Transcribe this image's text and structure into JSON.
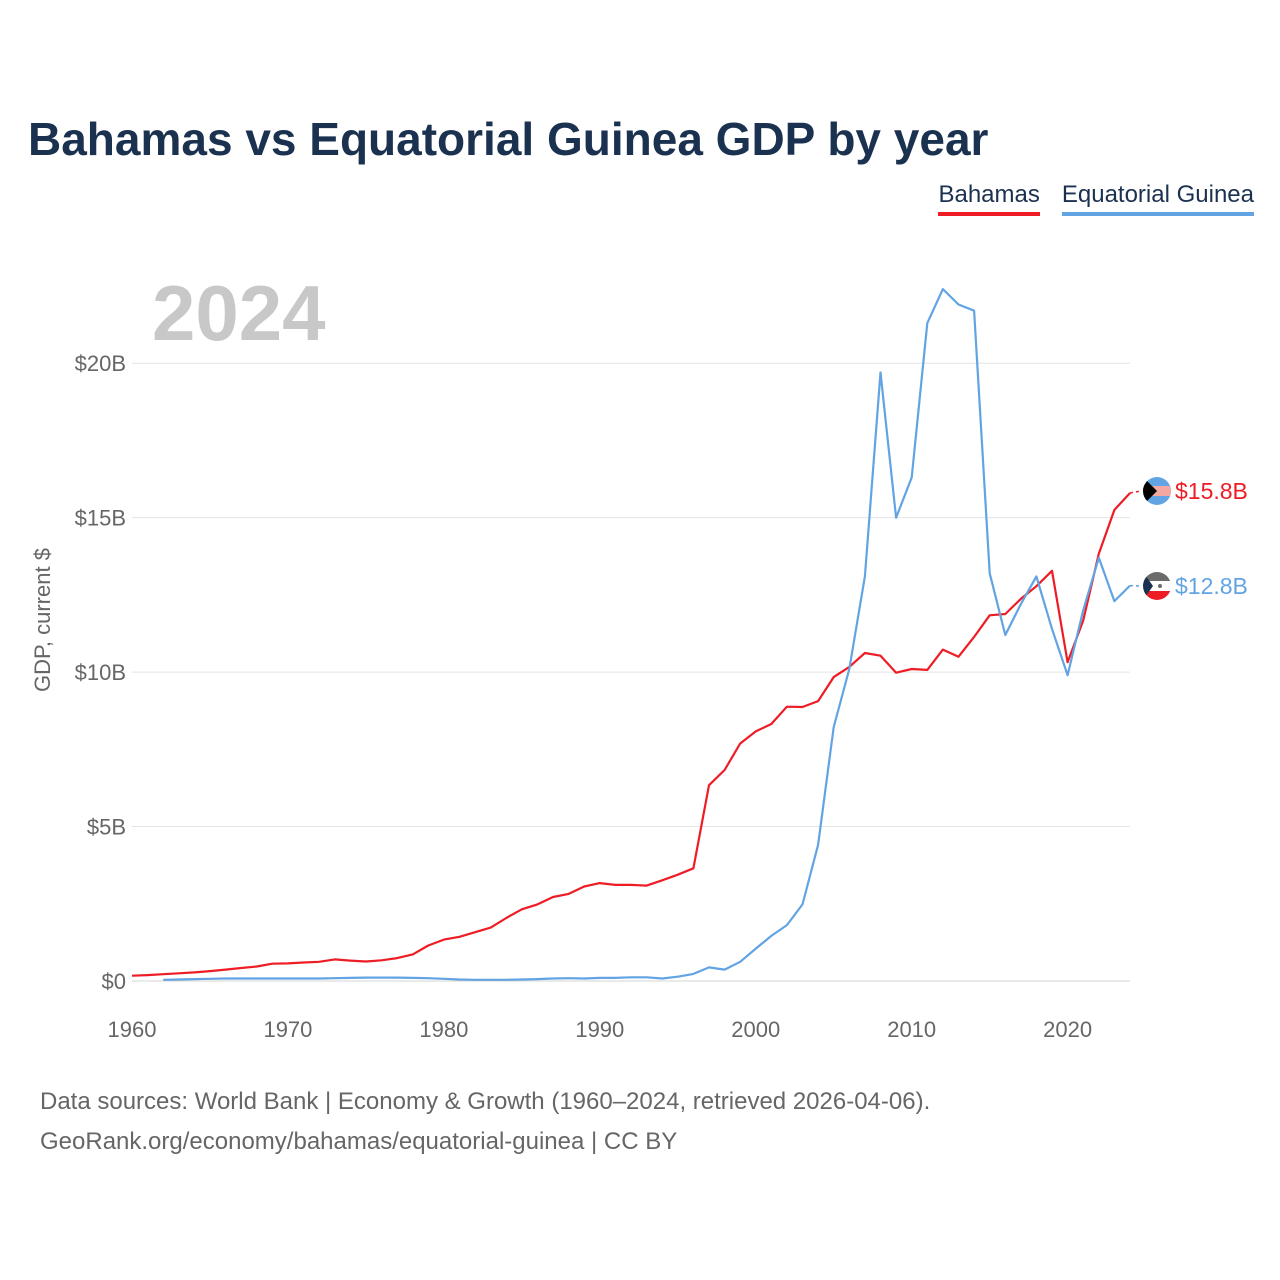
{
  "title": "Bahamas vs Equatorial Guinea GDP by year",
  "legend": [
    {
      "name": "Bahamas",
      "color": "#ee1c25"
    },
    {
      "name": "Equatorial Guinea",
      "color": "#62a4e3"
    }
  ],
  "year_label": "2024",
  "footer": {
    "line1": "Data sources: World Bank | Economy & Growth (1960–2024, retrieved 2026-04-06).",
    "line2": "GeoRank.org/economy/bahamas/equatorial-guinea | CC BY"
  },
  "chart_data": {
    "type": "line",
    "title": "Bahamas vs Equatorial Guinea GDP by year",
    "xlabel": "",
    "ylabel": "GDP, current $",
    "xlim": [
      1960,
      2024
    ],
    "ylim": [
      0,
      22.5
    ],
    "x_ticks": [
      1960,
      1970,
      1980,
      1990,
      2000,
      2010,
      2020
    ],
    "y_ticks": [
      {
        "value": 0,
        "label": "$0"
      },
      {
        "value": 5,
        "label": "$5B"
      },
      {
        "value": 10,
        "label": "$10B"
      },
      {
        "value": 15,
        "label": "$15B"
      },
      {
        "value": 20,
        "label": "$20B"
      }
    ],
    "grid": true,
    "series": [
      {
        "name": "Bahamas",
        "color": "#ee1c25",
        "end_label": "$15.8B",
        "x": [
          1960,
          1961,
          1962,
          1963,
          1964,
          1965,
          1966,
          1967,
          1968,
          1969,
          1970,
          1971,
          1972,
          1973,
          1974,
          1975,
          1976,
          1977,
          1978,
          1979,
          1980,
          1981,
          1982,
          1983,
          1984,
          1985,
          1986,
          1987,
          1988,
          1989,
          1990,
          1991,
          1992,
          1993,
          1994,
          1995,
          1996,
          1997,
          1998,
          1999,
          2000,
          2001,
          2002,
          2003,
          2004,
          2005,
          2006,
          2007,
          2008,
          2009,
          2010,
          2011,
          2012,
          2013,
          2014,
          2015,
          2016,
          2017,
          2018,
          2019,
          2020,
          2021,
          2022,
          2023,
          2024
        ],
        "values": [
          0.17,
          0.19,
          0.22,
          0.25,
          0.28,
          0.32,
          0.37,
          0.42,
          0.47,
          0.56,
          0.57,
          0.6,
          0.62,
          0.7,
          0.66,
          0.63,
          0.67,
          0.74,
          0.86,
          1.15,
          1.34,
          1.43,
          1.58,
          1.73,
          2.04,
          2.32,
          2.48,
          2.72,
          2.82,
          3.06,
          3.17,
          3.11,
          3.11,
          3.09,
          3.26,
          3.44,
          3.65,
          6.34,
          6.83,
          7.69,
          8.08,
          8.32,
          8.88,
          8.87,
          9.06,
          9.84,
          10.17,
          10.62,
          10.53,
          9.98,
          10.1,
          10.07,
          10.73,
          10.5,
          11.14,
          11.84,
          11.88,
          12.37,
          12.78,
          13.28,
          10.32,
          11.67,
          13.83,
          15.25,
          15.8
        ]
      },
      {
        "name": "Equatorial Guinea",
        "color": "#62a4e3",
        "end_label": "$12.8B",
        "x": [
          1962,
          1963,
          1964,
          1965,
          1966,
          1967,
          1968,
          1969,
          1970,
          1971,
          1972,
          1973,
          1974,
          1975,
          1976,
          1977,
          1978,
          1979,
          1980,
          1981,
          1982,
          1983,
          1984,
          1985,
          1986,
          1987,
          1988,
          1989,
          1990,
          1991,
          1992,
          1993,
          1994,
          1995,
          1996,
          1997,
          1998,
          1999,
          2000,
          2001,
          2002,
          2003,
          2004,
          2005,
          2006,
          2007,
          2008,
          2009,
          2010,
          2011,
          2012,
          2013,
          2014,
          2015,
          2016,
          2017,
          2018,
          2019,
          2020,
          2021,
          2022,
          2023,
          2024
        ],
        "values": [
          0.04,
          0.05,
          0.06,
          0.07,
          0.08,
          0.08,
          0.08,
          0.08,
          0.08,
          0.08,
          0.08,
          0.09,
          0.1,
          0.11,
          0.11,
          0.11,
          0.1,
          0.09,
          0.07,
          0.05,
          0.04,
          0.04,
          0.04,
          0.05,
          0.06,
          0.08,
          0.09,
          0.08,
          0.1,
          0.1,
          0.12,
          0.12,
          0.08,
          0.14,
          0.23,
          0.44,
          0.37,
          0.62,
          1.05,
          1.46,
          1.81,
          2.48,
          4.41,
          8.22,
          10.1,
          13.1,
          19.7,
          15.0,
          16.3,
          21.3,
          22.4,
          21.9,
          21.7,
          13.2,
          11.2,
          12.2,
          13.1,
          11.4,
          9.9,
          12.0,
          13.7,
          12.3,
          12.8
        ]
      }
    ]
  }
}
